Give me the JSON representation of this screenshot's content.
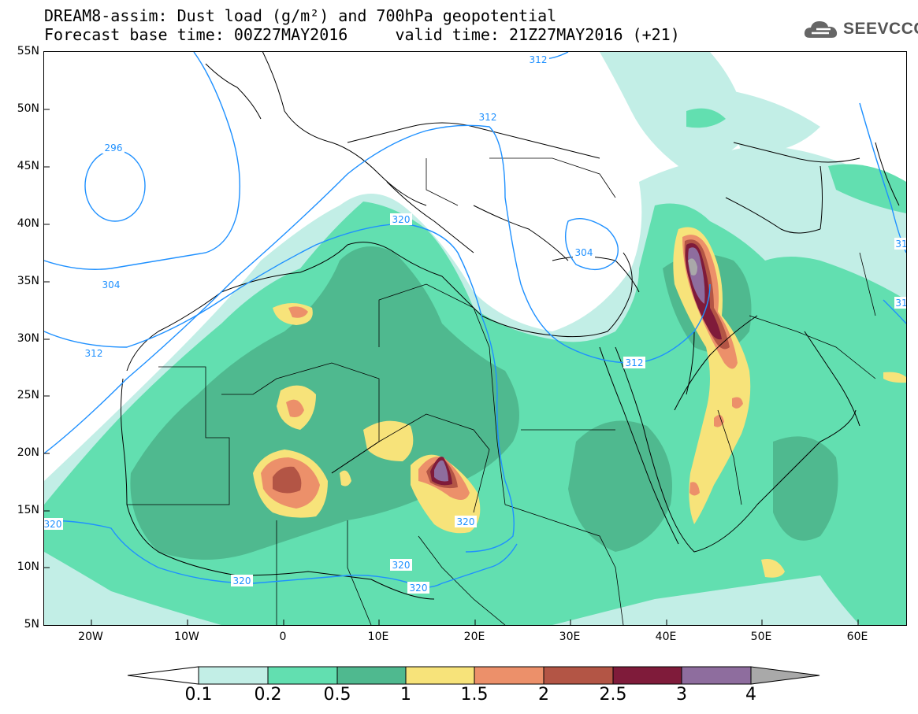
{
  "header": {
    "title_line1": "DREAM8-assim: Dust load (g/m²) and 700hPa geopotential",
    "title_line2": "Forecast base time: 00Z27MAY2016     valid time: 21Z27MAY2016 (+21)",
    "logo_text": "SEEVCCC"
  },
  "axes": {
    "lat_labels": [
      "55N",
      "50N",
      "45N",
      "40N",
      "35N",
      "30N",
      "25N",
      "20N",
      "15N",
      "10N",
      "5N"
    ],
    "lon_labels": [
      "20W",
      "10W",
      "0",
      "10E",
      "20E",
      "30E",
      "40E",
      "50E",
      "60E"
    ]
  },
  "contours": {
    "labels": [
      "312",
      "312",
      "296",
      "320",
      "304",
      "304",
      "312",
      "312",
      "320",
      "320",
      "320",
      "320",
      "320",
      "31",
      "31"
    ]
  },
  "colorbar": {
    "labels": [
      "0.1",
      "0.2",
      "0.5",
      "1",
      "1.5",
      "2",
      "2.5",
      "3",
      "4"
    ],
    "colors": [
      "#c2eee6",
      "#62dfb0",
      "#4fb98f",
      "#f7e37a",
      "#ec906a",
      "#b35545",
      "#7f1b3a",
      "#8e6d9e",
      "#a9a9a9"
    ]
  }
}
